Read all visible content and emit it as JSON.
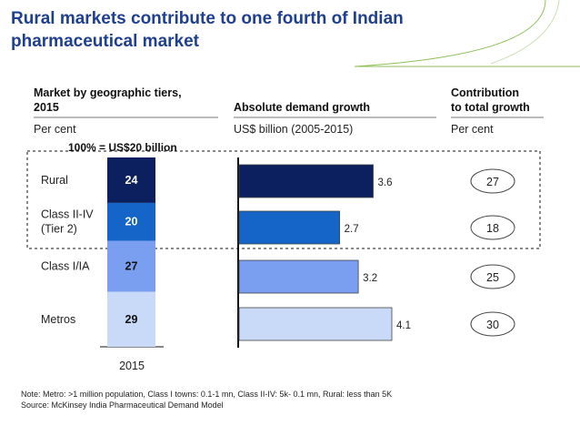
{
  "title_line1": "Rural markets contribute to one fourth of Indian",
  "title_line2": "pharmaceutical market",
  "colors": {
    "title": "#1f3f8f",
    "accent": "#8fbf5a",
    "series": [
      "#0c1f5e",
      "#1565c8",
      "#7a9ef0",
      "#c8daf7"
    ]
  },
  "chart_data": {
    "type": "bar",
    "left_panel": {
      "header_line1": "Market by geographic tiers,",
      "header_line2": "2015",
      "subheader": "Per cent",
      "total_label": "100% = US$20 billion",
      "year": "2015"
    },
    "middle_panel": {
      "header": "Absolute demand growth",
      "subheader": "US$ billion (2005-2015)"
    },
    "right_panel": {
      "header_line1": "Contribution",
      "header_line2": "to total growth",
      "subheader": "Per cent"
    },
    "categories": [
      {
        "label_lines": [
          "Rural"
        ],
        "share": 24,
        "growth": 3.6,
        "contribution": 27
      },
      {
        "label_lines": [
          "Class II-IV",
          "(Tier 2)"
        ],
        "share": 20,
        "growth": 2.7,
        "contribution": 18
      },
      {
        "label_lines": [
          "Class I/IA"
        ],
        "share": 27,
        "growth": 3.2,
        "contribution": 25
      },
      {
        "label_lines": [
          "Metros"
        ],
        "share": 29,
        "growth": 4.1,
        "contribution": 30
      }
    ],
    "growth_max": 4.1
  },
  "notes": {
    "note": "Note: Metro:  >1 million population, Class I towns:  0.1-1 mn, Class II-IV:  5k- 0.1 mn, Rural:  less than 5K",
    "source": "Source: McKinsey India Pharmaceutical Demand Model"
  }
}
